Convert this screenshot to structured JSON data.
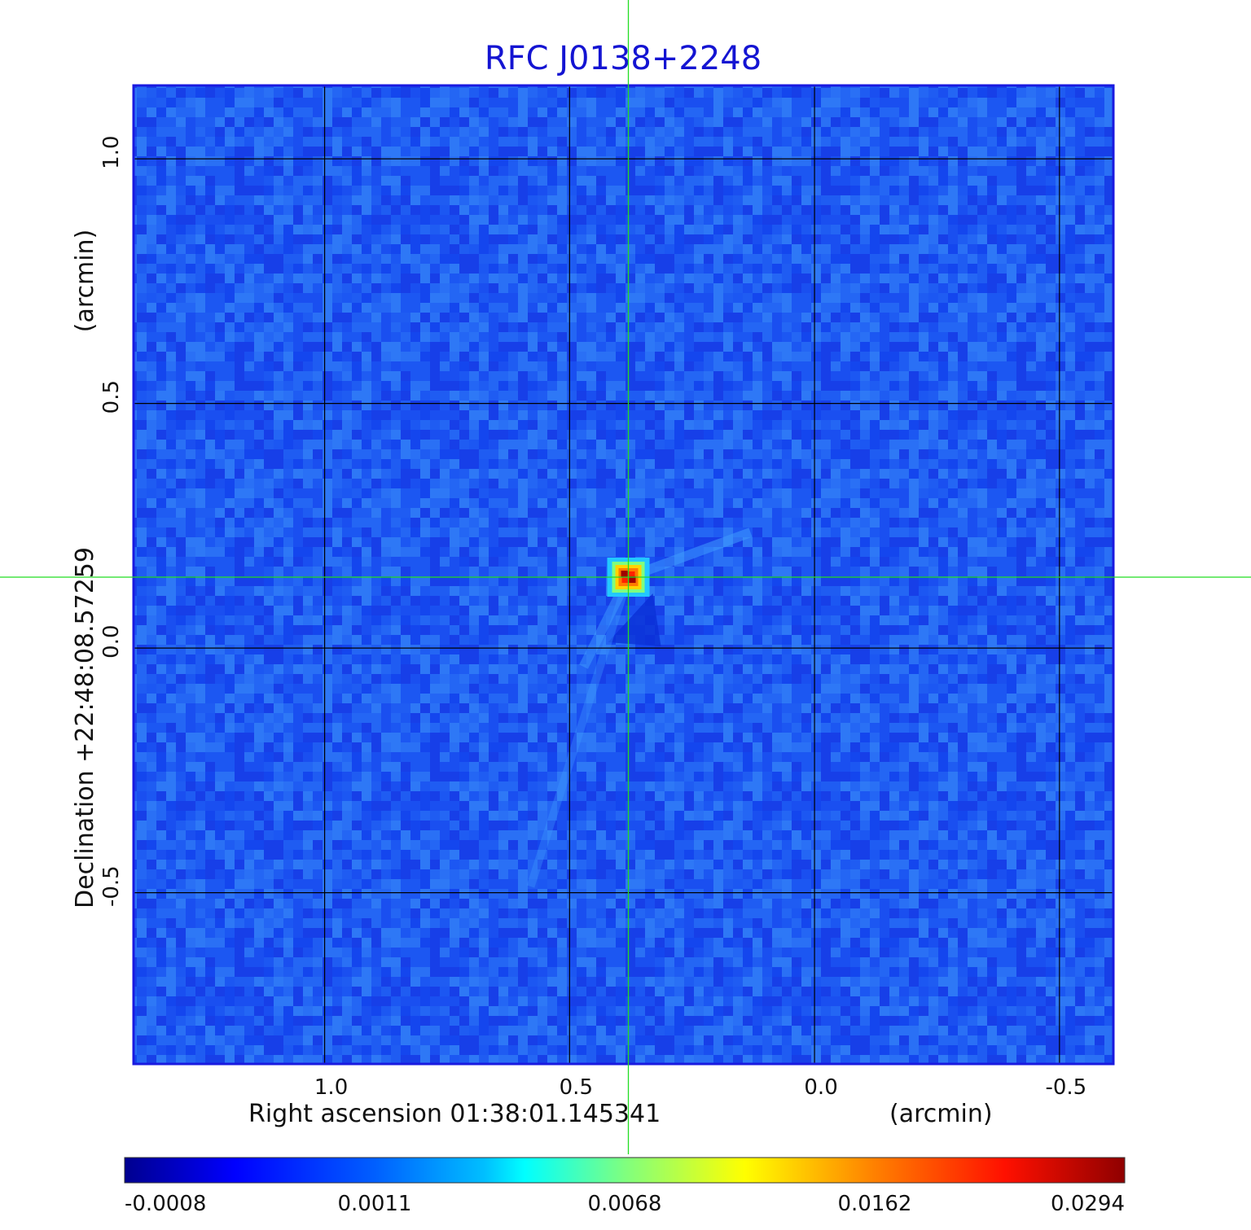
{
  "chart_data": {
    "type": "heatmap",
    "title": "RFC J0138+2248",
    "xlabel": "Right ascension  01:38:01.145341",
    "xunit": "(arcmin)",
    "ylabel": "Declination  +22:48:08.57259",
    "yunit": "(arcmin)",
    "x_ticks": [
      {
        "value": 1.0,
        "label": "1.0"
      },
      {
        "value": 0.5,
        "label": "0.5"
      },
      {
        "value": 0.0,
        "label": "0.0"
      },
      {
        "value": -0.5,
        "label": "-0.5"
      }
    ],
    "y_ticks": [
      {
        "value": 1.0,
        "label": "1.0"
      },
      {
        "value": 0.5,
        "label": "0.5"
      },
      {
        "value": 0.0,
        "label": "0.0"
      },
      {
        "value": -0.5,
        "label": "-0.5"
      }
    ],
    "xlim": [
      1.39,
      -0.61
    ],
    "ylim": [
      -0.85,
      1.15
    ],
    "x_axis_inverted": true,
    "grid": true,
    "crosshair": {
      "x": 0.38,
      "y": 0.145,
      "color": "#22dd22"
    },
    "source_peak": {
      "x": 0.38,
      "y": 0.145,
      "value": 0.0294
    },
    "colorbar": {
      "colormap": "jet",
      "placement": "bottom",
      "stretch": "nonlinear",
      "min": -0.0008,
      "max": 0.0294,
      "tick_labels": [
        "-0.0008",
        "0.0011",
        "0.0068",
        "0.0162",
        "0.0294"
      ]
    },
    "colors": {
      "background": "#1f5cf2",
      "frame": "#1a1ae0",
      "grid": "#000000"
    }
  }
}
